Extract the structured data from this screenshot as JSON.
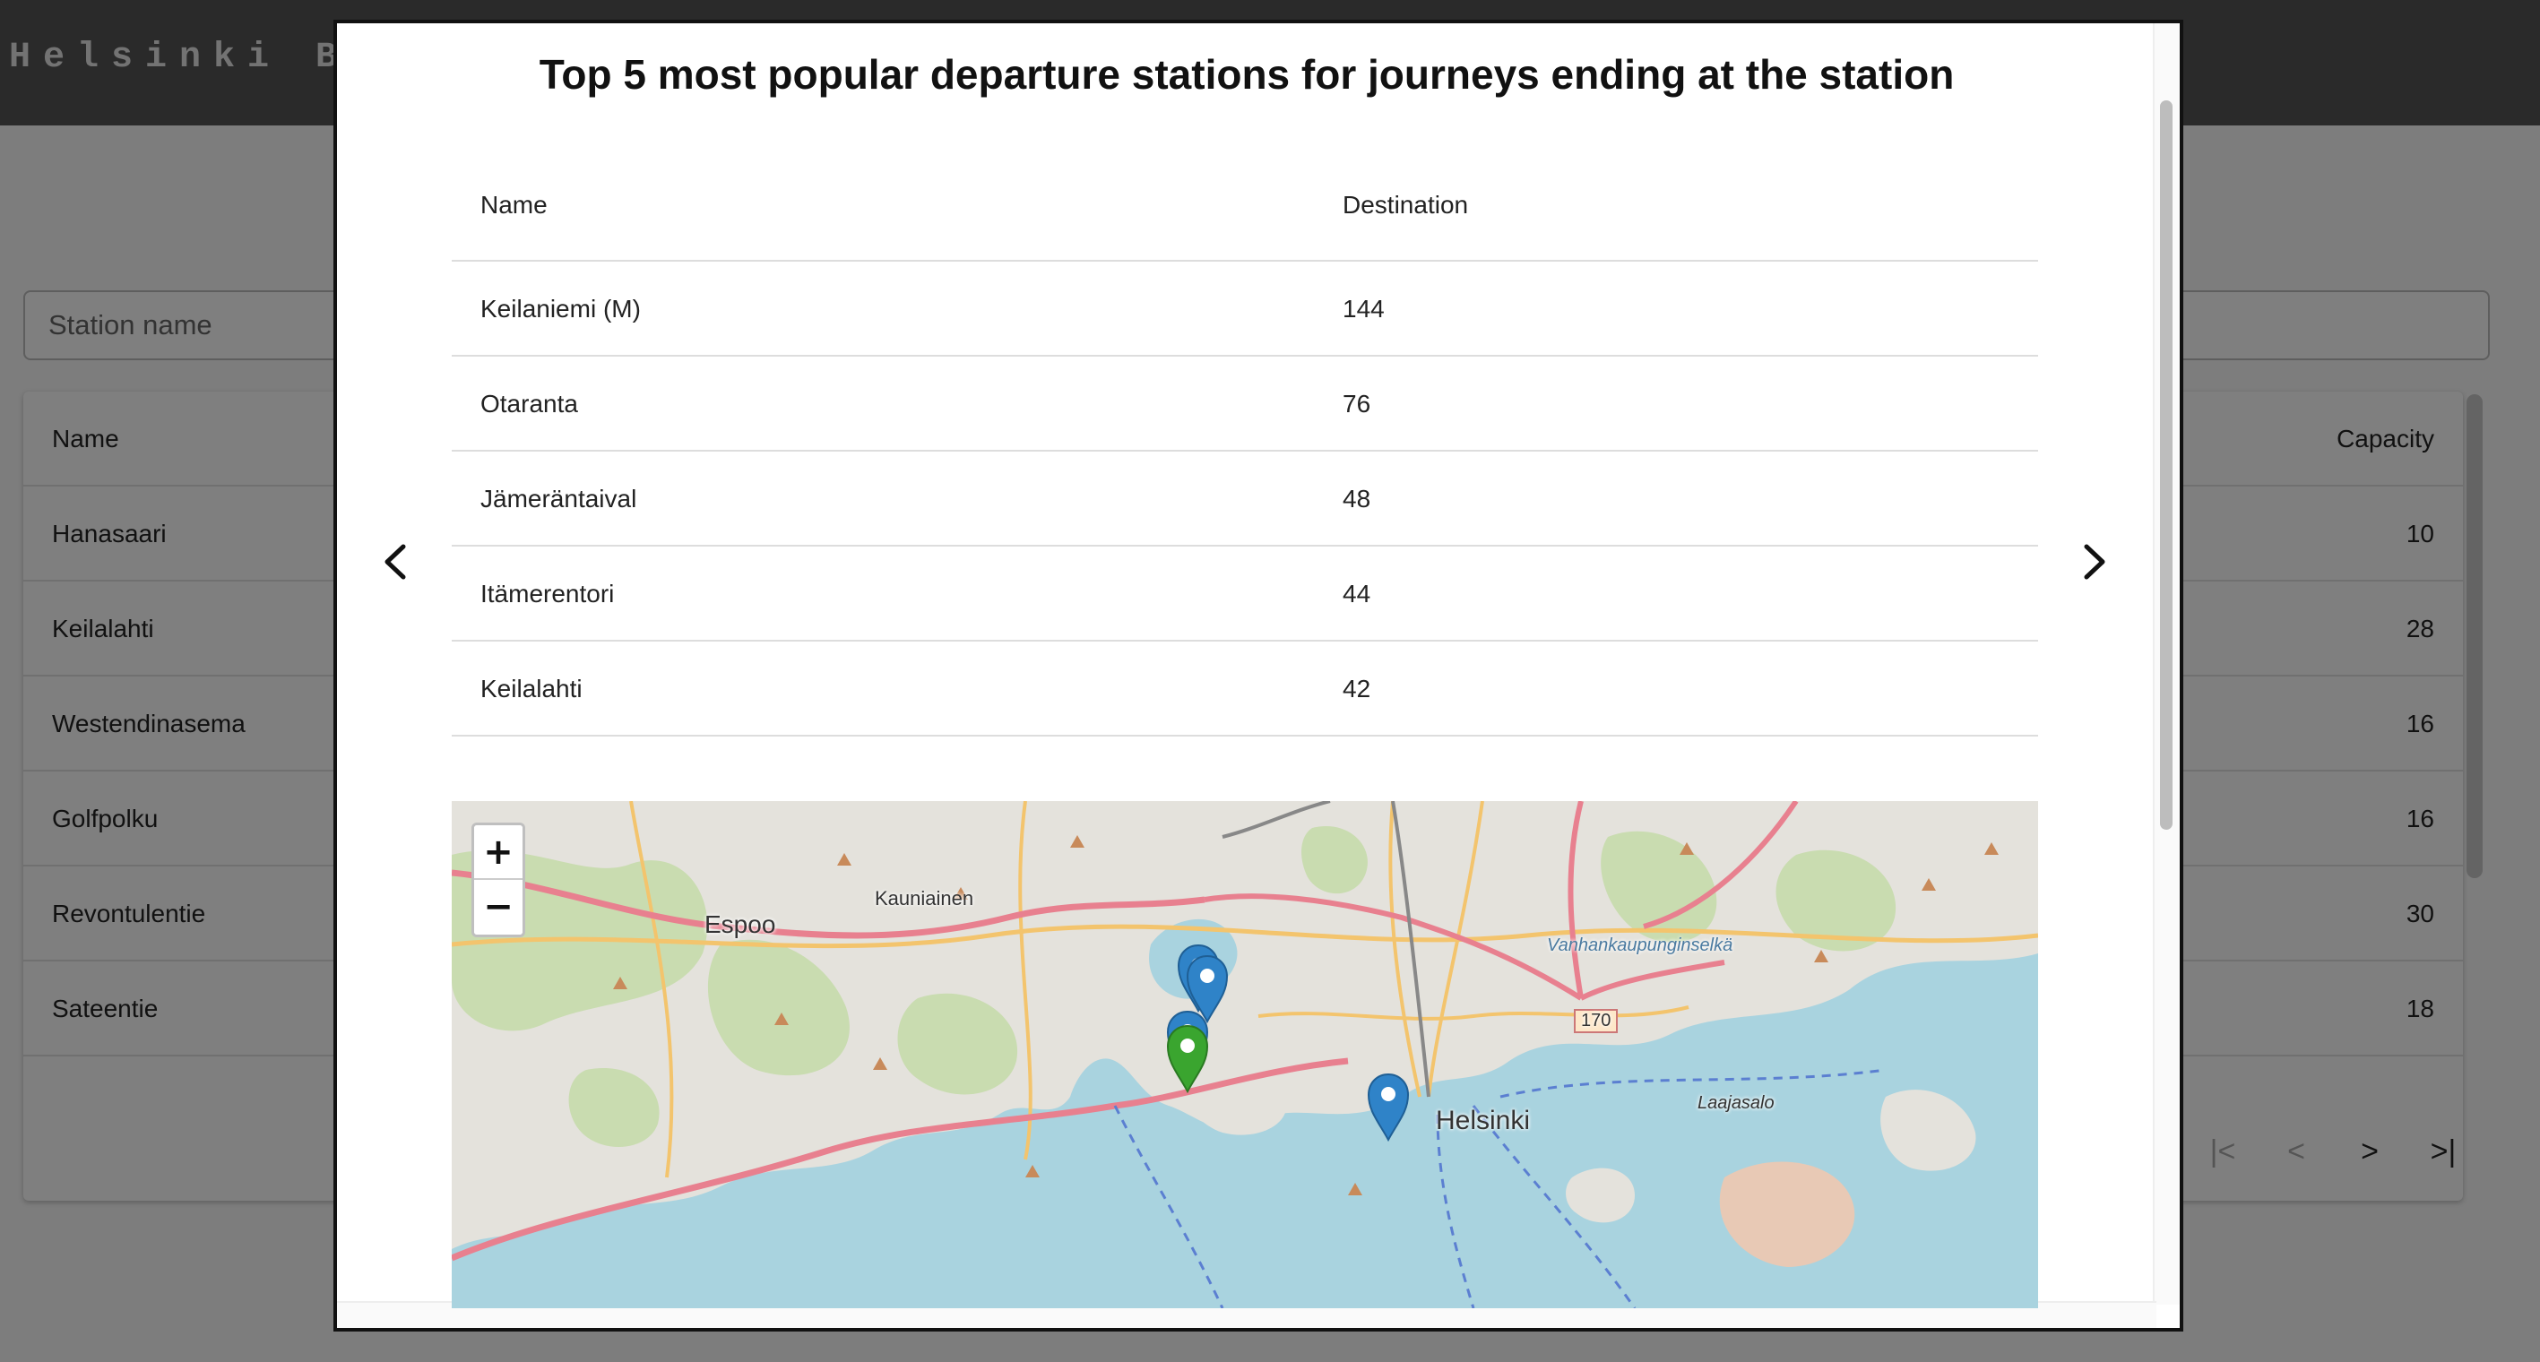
{
  "app": {
    "brand": "Helsinki Bi",
    "search_placeholder": "Station name",
    "table": {
      "col_name": "Name",
      "col_capacity": "Capacity",
      "rows": [
        {
          "name": "Hanasaari",
          "capacity": "10"
        },
        {
          "name": "Keilalahti",
          "capacity": "28"
        },
        {
          "name": "Westendinasema",
          "capacity": "16"
        },
        {
          "name": "Golfpolku",
          "capacity": "16"
        },
        {
          "name": "Revontulentie",
          "capacity": "30"
        },
        {
          "name": "Sateentie",
          "capacity": "18"
        }
      ]
    },
    "pager": {
      "first": "|<",
      "prev": "<",
      "next": ">",
      "last": ">|"
    }
  },
  "modal": {
    "title": "Top 5 most popular departure stations for journeys ending at the station",
    "columns": {
      "name": "Name",
      "destination": "Destination"
    },
    "rows": [
      {
        "name": "Keilaniemi (M)",
        "destination": "144"
      },
      {
        "name": "Otaranta",
        "destination": "76"
      },
      {
        "name": "Jämeräntaival",
        "destination": "48"
      },
      {
        "name": "Itämerentori",
        "destination": "44"
      },
      {
        "name": "Keilalahti",
        "destination": "42"
      }
    ],
    "prev_icon": "chevron-left-icon",
    "next_icon": "chevron-right-icon"
  },
  "map": {
    "labels": {
      "espoo": "Espoo",
      "kauniainen": "Kauniainen",
      "helsinki": "Helsinki",
      "laajasalo": "Laajasalo",
      "vanhankaupunginselka": "Vanhankaupunginselkä",
      "road_170": "170"
    },
    "zoom_in": "+",
    "zoom_out": "−",
    "colors": {
      "water": "#a9d3df",
      "land": "#e4e2dc",
      "forest": "#c9dcb0",
      "major_road": "#e8808f",
      "minor_road": "#f3c46d",
      "marker_blue": "#2f83c8",
      "marker_green": "#3aa52f"
    }
  }
}
